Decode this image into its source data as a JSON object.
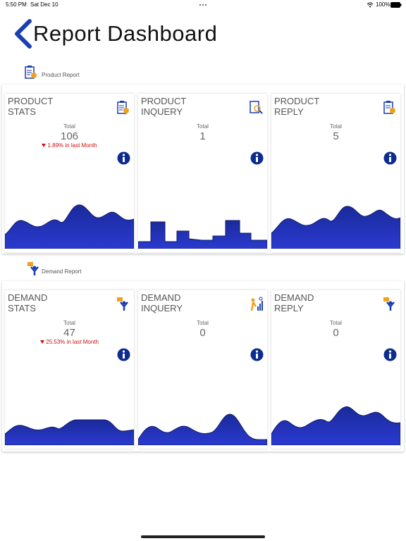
{
  "status_bar": {
    "time": "5:50 PM",
    "date": "Sat Dec 10",
    "battery": "100%"
  },
  "header": {
    "title": "Report Dashboard"
  },
  "sections": [
    {
      "label": "Product Report",
      "cards": [
        {
          "title": [
            "PRODUCT",
            "STATS"
          ],
          "total_label": "Total",
          "total": "106",
          "change": "1.89%  in last Month"
        },
        {
          "title": [
            "PRODUCT",
            "INQUERY"
          ],
          "total_label": "Total",
          "total": "1"
        },
        {
          "title": [
            "PRODUCT",
            "REPLY"
          ],
          "total_label": "Total",
          "total": "5"
        }
      ]
    },
    {
      "label": "Demand Report",
      "cards": [
        {
          "title": [
            "DEMAND",
            "STATS"
          ],
          "total_label": "Total",
          "total": "47",
          "change": "25.53% in last Month"
        },
        {
          "title": [
            "DEMAND",
            "INQUERY"
          ],
          "total_label": "Total",
          "total": "0"
        },
        {
          "title": [
            "DEMAND",
            "REPLY"
          ],
          "total_label": "Total",
          "total": "0"
        }
      ]
    }
  ]
}
